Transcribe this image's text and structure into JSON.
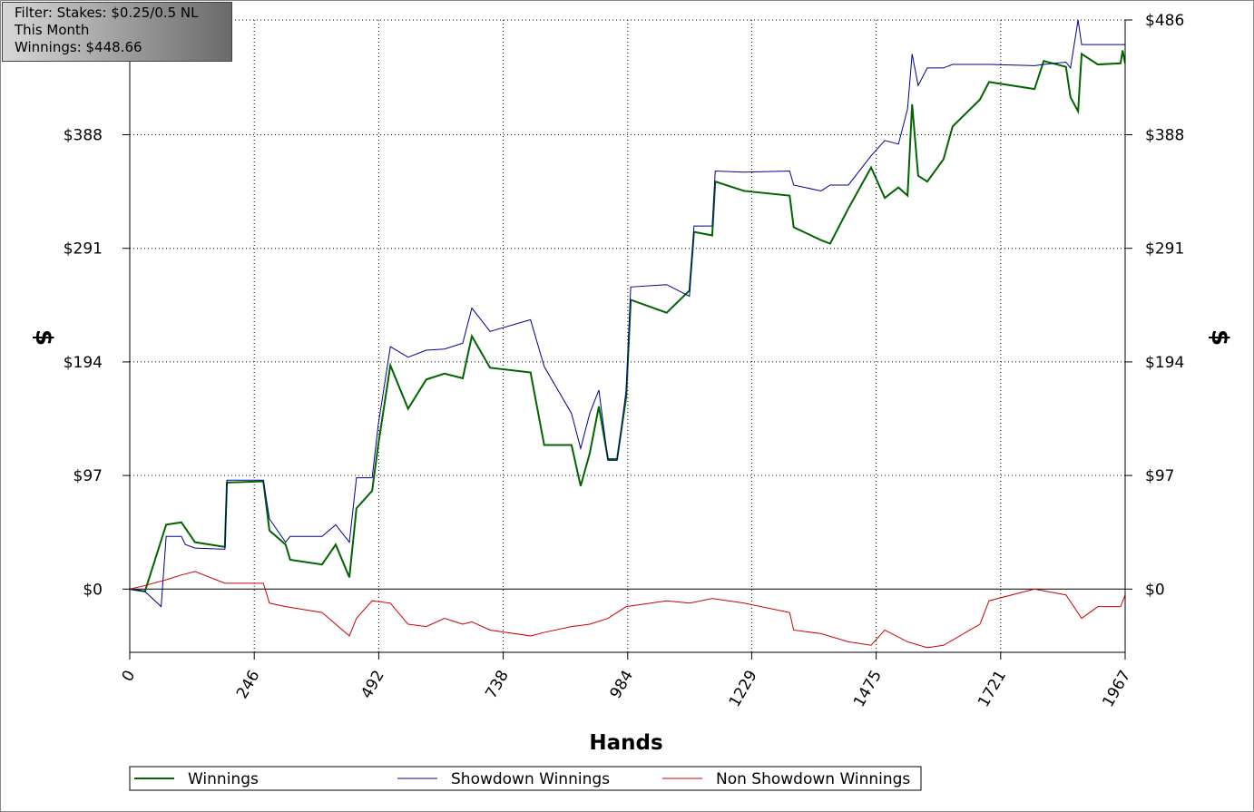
{
  "chart_data": {
    "type": "line",
    "filter_lines": [
      "Filter: Stakes: $0.25/0.5 NL",
      "This Month",
      "Winnings: $448.66"
    ],
    "x_label": "Hands",
    "y_label": "$",
    "y2_label": "$",
    "xlim": [
      0,
      1967
    ],
    "xticks": [
      0,
      246,
      492,
      738,
      984,
      1229,
      1475,
      1721,
      1967
    ],
    "ylim": [
      -54,
      486
    ],
    "yticks": [
      {
        "value": 0,
        "label": "$0"
      },
      {
        "value": 97,
        "label": "$97"
      },
      {
        "value": 194,
        "label": "$194"
      },
      {
        "value": 291,
        "label": "$291"
      },
      {
        "value": 388,
        "label": "$388"
      },
      {
        "value": 486,
        "label": "$486"
      }
    ],
    "grid": true,
    "series": [
      {
        "name": "Winnings",
        "color": "#006400",
        "x": [
          0,
          30,
          72,
          102,
          129,
          188,
          192,
          264,
          276,
          308,
          317,
          380,
          407,
          434,
          448,
          479,
          491,
          515,
          550,
          586,
          622,
          658,
          676,
          712,
          792,
          819,
          873,
          891,
          909,
          927,
          945,
          963,
          981,
          990,
          1061,
          1106,
          1115,
          1151,
          1157,
          1214,
          1304,
          1312,
          1366,
          1384,
          1420,
          1465,
          1492,
          1519,
          1537,
          1546,
          1558,
          1576,
          1608,
          1626,
          1680,
          1698,
          1788,
          1806,
          1850,
          1859,
          1874,
          1881,
          1913,
          1958,
          1962,
          1967
        ],
        "values": [
          0,
          -2,
          55,
          57,
          40,
          36,
          91,
          92,
          50,
          38,
          25,
          21,
          38,
          10,
          69,
          84,
          123,
          191,
          154,
          179,
          184,
          180,
          216,
          189,
          185,
          123,
          123,
          88,
          116,
          156,
          111,
          111,
          164,
          247,
          236,
          255,
          305,
          302,
          348,
          340,
          336,
          309,
          298,
          295,
          325,
          360,
          334,
          343,
          336,
          414,
          353,
          348,
          367,
          395,
          418,
          433,
          427,
          451,
          446,
          420,
          408,
          457,
          448,
          449,
          460,
          449
        ]
      },
      {
        "name": "Showdown Winnings",
        "color": "#00008b",
        "x": [
          0,
          30,
          62,
          72,
          102,
          110,
          129,
          188,
          192,
          264,
          276,
          308,
          317,
          380,
          407,
          434,
          448,
          479,
          491,
          515,
          550,
          586,
          622,
          658,
          676,
          712,
          792,
          819,
          873,
          891,
          909,
          927,
          945,
          963,
          981,
          990,
          1061,
          1106,
          1115,
          1151,
          1157,
          1214,
          1304,
          1312,
          1366,
          1384,
          1420,
          1465,
          1492,
          1519,
          1537,
          1546,
          1558,
          1576,
          1608,
          1626,
          1680,
          1698,
          1788,
          1806,
          1850,
          1859,
          1874,
          1881,
          1913,
          1958,
          1967
        ],
        "values": [
          0,
          -2,
          -15,
          45,
          45,
          38,
          35,
          34,
          93,
          93,
          60,
          40,
          45,
          45,
          55,
          40,
          95,
          95,
          140,
          207,
          198,
          204,
          205,
          210,
          240,
          220,
          230,
          190,
          150,
          120,
          150,
          170,
          110,
          110,
          170,
          258,
          260,
          250,
          310,
          310,
          357,
          356,
          357,
          345,
          340,
          345,
          345,
          370,
          383,
          380,
          410,
          457,
          430,
          445,
          445,
          448,
          448,
          448,
          447,
          448,
          450,
          445,
          486,
          465,
          465,
          465,
          465
        ]
      },
      {
        "name": "Non Showdown Winnings",
        "color": "#cc0000",
        "x": [
          0,
          30,
          72,
          102,
          129,
          188,
          264,
          276,
          308,
          380,
          407,
          434,
          448,
          479,
          515,
          550,
          586,
          622,
          658,
          676,
          712,
          792,
          819,
          873,
          909,
          945,
          981,
          1061,
          1106,
          1151,
          1214,
          1304,
          1312,
          1366,
          1420,
          1465,
          1492,
          1537,
          1576,
          1608,
          1680,
          1698,
          1788,
          1850,
          1881,
          1913,
          1958,
          1967
        ],
        "values": [
          0,
          3,
          8,
          12,
          15,
          5,
          5,
          -12,
          -15,
          -20,
          -30,
          -40,
          -25,
          -10,
          -12,
          -30,
          -32,
          -25,
          -30,
          -28,
          -35,
          -40,
          -37,
          -32,
          -30,
          -25,
          -15,
          -10,
          -12,
          -8,
          -12,
          -20,
          -35,
          -38,
          -45,
          -48,
          -35,
          -45,
          -50,
          -48,
          -30,
          -10,
          0,
          -5,
          -25,
          -15,
          -15,
          -5
        ]
      }
    ]
  }
}
